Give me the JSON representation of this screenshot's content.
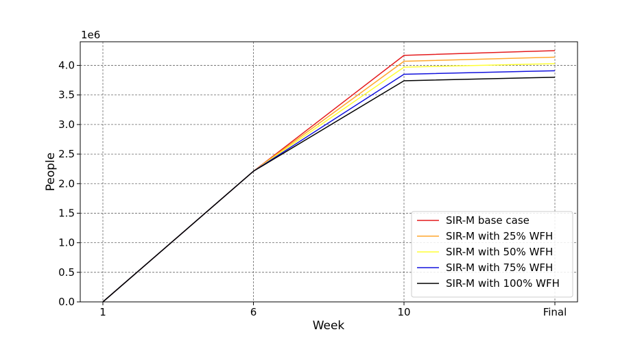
{
  "chart_data": {
    "type": "line",
    "x_categories": [
      "1",
      "6",
      "10",
      "Final"
    ],
    "xlabel": "Week",
    "ylabel": "People",
    "offset_label": "1e6",
    "y_scale": 1000000,
    "ylim": [
      0,
      4400000
    ],
    "yticks": [
      0,
      500000,
      1000000,
      1500000,
      2000000,
      2500000,
      3000000,
      3500000,
      4000000
    ],
    "ytick_labels": [
      "0.0",
      "0.5",
      "1.0",
      "1.5",
      "2.0",
      "2.5",
      "3.0",
      "3.5",
      "4.0"
    ],
    "grid": true,
    "legend_position": "lower-right",
    "series": [
      {
        "name": "SIR-M base case",
        "color": "#e41a1c",
        "values": [
          0,
          2210000,
          4170000,
          4250000
        ]
      },
      {
        "name": "SIR-M with 25% WFH",
        "color": "#ffa62b",
        "values": [
          0,
          2210000,
          4070000,
          4140000
        ]
      },
      {
        "name": "SIR-M with 50% WFH",
        "color": "#ffff33",
        "values": [
          0,
          2210000,
          3970000,
          4030000
        ]
      },
      {
        "name": "SIR-M with 75% WFH",
        "color": "#1010dd",
        "values": [
          0,
          2210000,
          3850000,
          3910000
        ]
      },
      {
        "name": "SIR-M with 100% WFH",
        "color": "#000000",
        "values": [
          0,
          2210000,
          3740000,
          3800000
        ]
      }
    ]
  }
}
